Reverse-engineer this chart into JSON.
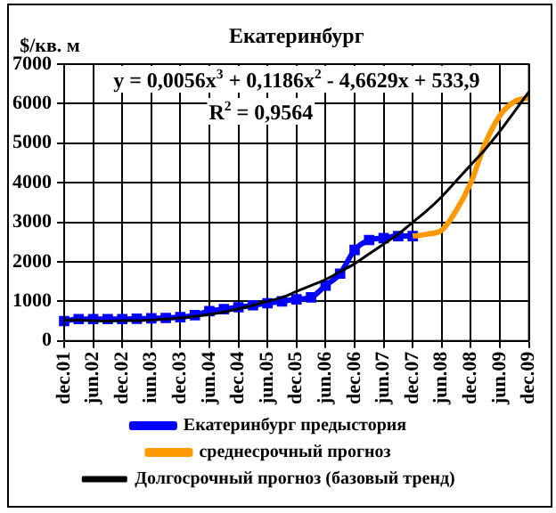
{
  "chart_data": {
    "type": "line",
    "title": "Екатеринбург",
    "ylabel": "$/кв. м",
    "categories": [
      "dec.01",
      null,
      "jun.02",
      null,
      "dec.02",
      null,
      "iun.03",
      null,
      "dec.03",
      null,
      "jun.04",
      null,
      "dec.04",
      null,
      "jun.05",
      null,
      "dec.05",
      null,
      "jun.06",
      null,
      "dec.06",
      null,
      "jun.07",
      null,
      "dec.07",
      null,
      "jun.08",
      null,
      "dec.08",
      null,
      "jun.09",
      null,
      "dec.09"
    ],
    "series": [
      {
        "name": "Екатеринбург предыстория",
        "color": "#0000ff",
        "marker": "square",
        "values": [
          500,
          550,
          550,
          550,
          550,
          560,
          570,
          580,
          600,
          650,
          750,
          800,
          850,
          900,
          950,
          1000,
          1050,
          1100,
          1400,
          1700,
          2300,
          2550,
          2600,
          2650,
          2650,
          null,
          null,
          null,
          null,
          null,
          null,
          null,
          null
        ]
      },
      {
        "name": "среднесрочный прогноз",
        "color": "#ff9900",
        "values": [
          null,
          null,
          null,
          null,
          null,
          null,
          null,
          null,
          null,
          null,
          null,
          null,
          null,
          null,
          null,
          null,
          null,
          null,
          null,
          null,
          null,
          null,
          null,
          null,
          2650,
          2700,
          2800,
          3300,
          4000,
          5000,
          5700,
          6050,
          6150
        ]
      },
      {
        "name": "Долгосрочный прогноз (базовый тренд)",
        "color": "#000000",
        "values": [
          530,
          520,
          510,
          500,
          510,
          510,
          530,
          550,
          580,
          620,
          670,
          730,
          810,
          900,
          1000,
          1100,
          1250,
          1400,
          1550,
          1750,
          1950,
          2200,
          2450,
          2700,
          3000,
          3300,
          3650,
          4050,
          4450,
          4850,
          5300,
          5800,
          6300
        ]
      }
    ],
    "ylim": [
      0,
      7000
    ],
    "yticks": [
      0,
      1000,
      2000,
      3000,
      4000,
      5000,
      6000,
      7000
    ],
    "grid": true,
    "legend": "bottom",
    "marker": "none",
    "line_style": "solid",
    "annotations": [
      "y = 0,0056x$^{3}$ + 0,1186x$^{2}$ - 4,6629x + 533,9",
      "R$^{2}$ = 0,9564"
    ]
  }
}
